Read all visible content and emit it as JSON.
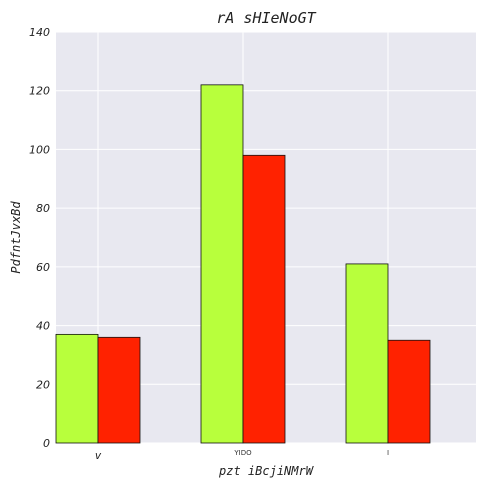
{
  "chart_data": {
    "type": "bar",
    "title": "rA sHIeNoGT",
    "xlabel": "pzt iBcjiNMrW",
    "ylabel": "PdfntJvxBd",
    "categories": [
      "v",
      "YIDO",
      "I"
    ],
    "series": [
      {
        "values": [
          37,
          122,
          61
        ],
        "color": "#b8ff3c"
      },
      {
        "values": [
          36,
          98,
          35
        ],
        "color": "#ff2200"
      }
    ],
    "ylim": [
      0,
      140
    ],
    "yticks": [
      0,
      20,
      40,
      60,
      80,
      100,
      120,
      140
    ],
    "grid": true,
    "background": "#e8e8f0",
    "legend": "none"
  }
}
